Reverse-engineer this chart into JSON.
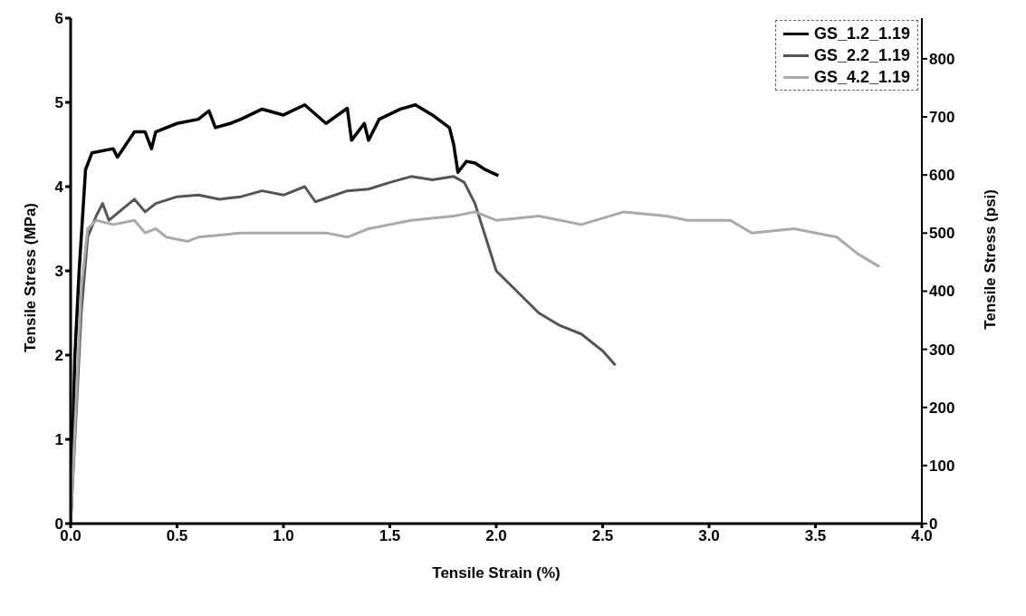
{
  "chart_data": {
    "type": "line",
    "xlabel": "Tensile Strain (%)",
    "ylabel": "Tensile Stress (MPa)",
    "y2label": "Tensile Stress (psi)",
    "xlim": [
      0,
      4
    ],
    "xticks": [
      {
        "value": 0,
        "label": "0.0"
      },
      {
        "value": 0.5,
        "label": "0.5"
      },
      {
        "value": 1,
        "label": "1.0"
      },
      {
        "value": 1.5,
        "label": "1.5"
      },
      {
        "value": 2,
        "label": "2.0"
      },
      {
        "value": 2.5,
        "label": "2.5"
      },
      {
        "value": 3,
        "label": "3.0"
      },
      {
        "value": 3.5,
        "label": "3.5"
      },
      {
        "value": 4,
        "label": "4.0"
      }
    ],
    "ylim": [
      0,
      6
    ],
    "yticks": [
      0,
      1,
      2,
      3,
      4,
      5,
      6
    ],
    "y2lim": [
      0,
      870
    ],
    "y2ticks": [
      0,
      100,
      200,
      300,
      400,
      500,
      600,
      700,
      800
    ],
    "grid": false,
    "legend": "top right",
    "marker": "none",
    "line_style": "solid",
    "series": [
      {
        "name": "GS_1.2_1.19",
        "color": "#000000",
        "x": [
          0,
          0.02,
          0.04,
          0.05,
          0.07,
          0.1,
          0.2,
          0.22,
          0.3,
          0.35,
          0.38,
          0.4,
          0.5,
          0.6,
          0.65,
          0.68,
          0.75,
          0.8,
          0.9,
          1.0,
          1.1,
          1.2,
          1.3,
          1.32,
          1.38,
          1.4,
          1.45,
          1.55,
          1.62,
          1.7,
          1.78,
          1.8,
          1.82,
          1.86,
          1.9,
          1.95,
          2.01
        ],
        "values": [
          0,
          2.0,
          3.0,
          3.4,
          4.2,
          4.4,
          4.45,
          4.35,
          4.65,
          4.65,
          4.45,
          4.65,
          4.75,
          4.8,
          4.9,
          4.7,
          4.75,
          4.8,
          4.92,
          4.85,
          4.97,
          4.75,
          4.93,
          4.55,
          4.75,
          4.55,
          4.8,
          4.92,
          4.97,
          4.85,
          4.7,
          4.5,
          4.17,
          4.3,
          4.28,
          4.2,
          4.13
        ]
      },
      {
        "name": "GS_2.2_1.19",
        "color": "#555555",
        "x": [
          0,
          0.05,
          0.08,
          0.12,
          0.15,
          0.18,
          0.3,
          0.35,
          0.4,
          0.5,
          0.6,
          0.7,
          0.8,
          0.9,
          1.0,
          1.1,
          1.15,
          1.3,
          1.4,
          1.5,
          1.6,
          1.7,
          1.8,
          1.85,
          1.9,
          1.95,
          2.0,
          2.1,
          2.2,
          2.3,
          2.4,
          2.5,
          2.56
        ],
        "values": [
          0,
          2.5,
          3.4,
          3.65,
          3.8,
          3.6,
          3.85,
          3.7,
          3.8,
          3.88,
          3.9,
          3.85,
          3.88,
          3.95,
          3.9,
          4.0,
          3.82,
          3.95,
          3.97,
          4.05,
          4.12,
          4.08,
          4.12,
          4.05,
          3.8,
          3.4,
          3.0,
          2.75,
          2.5,
          2.35,
          2.25,
          2.05,
          1.88
        ]
      },
      {
        "name": "GS_4.2_1.19",
        "color": "#aaaaaa",
        "x": [
          0,
          0.05,
          0.08,
          0.12,
          0.2,
          0.3,
          0.35,
          0.4,
          0.45,
          0.55,
          0.6,
          0.8,
          1.0,
          1.2,
          1.3,
          1.4,
          1.6,
          1.8,
          1.9,
          2.0,
          2.2,
          2.4,
          2.6,
          2.8,
          2.9,
          3.1,
          3.2,
          3.4,
          3.6,
          3.7,
          3.8
        ],
        "values": [
          0,
          2.8,
          3.5,
          3.6,
          3.55,
          3.6,
          3.45,
          3.5,
          3.4,
          3.35,
          3.4,
          3.45,
          3.45,
          3.45,
          3.4,
          3.5,
          3.6,
          3.65,
          3.7,
          3.6,
          3.65,
          3.55,
          3.7,
          3.65,
          3.6,
          3.6,
          3.45,
          3.5,
          3.4,
          3.2,
          3.05
        ]
      }
    ]
  }
}
